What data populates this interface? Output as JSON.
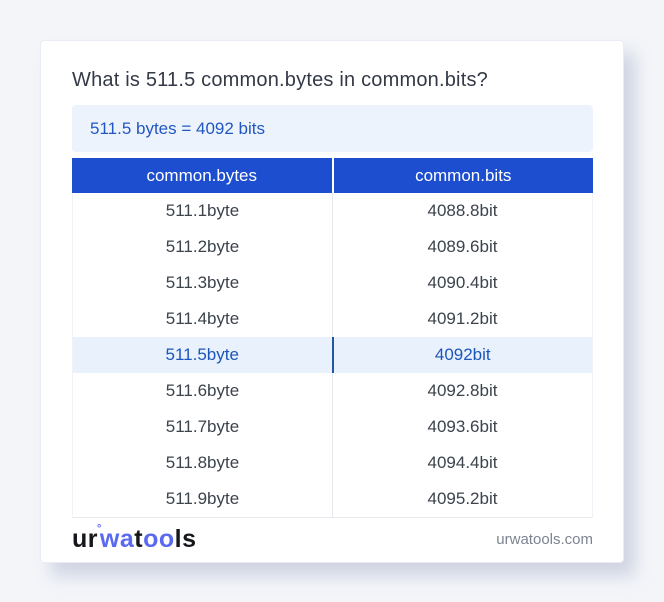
{
  "page": {
    "title": "What is 511.5 common.bytes in common.bits?",
    "answer": "511.5 bytes = 4092 bits"
  },
  "table": {
    "columns": [
      "common.bytes",
      "common.bits"
    ],
    "rows": [
      {
        "bytes": "511.1byte",
        "bits": "4088.8bit",
        "highlight": false
      },
      {
        "bytes": "511.2byte",
        "bits": "4089.6bit",
        "highlight": false
      },
      {
        "bytes": "511.3byte",
        "bits": "4090.4bit",
        "highlight": false
      },
      {
        "bytes": "511.4byte",
        "bits": "4091.2bit",
        "highlight": false
      },
      {
        "bytes": "511.5byte",
        "bits": "4092bit",
        "highlight": true
      },
      {
        "bytes": "511.6byte",
        "bits": "4092.8bit",
        "highlight": false
      },
      {
        "bytes": "511.7byte",
        "bits": "4093.6bit",
        "highlight": false
      },
      {
        "bytes": "511.8byte",
        "bits": "4094.4bit",
        "highlight": false
      },
      {
        "bytes": "511.9byte",
        "bits": "4095.2bit",
        "highlight": false
      }
    ]
  },
  "footer": {
    "logo": {
      "part1": "ur",
      "degree_mark": "°",
      "part2": "wa",
      "part3": "t",
      "part4": "oo",
      "part5": "ls"
    },
    "domain": "urwatools.com"
  },
  "colors": {
    "page_background": "#f3f5f9",
    "card_background": "#ffffff",
    "table_header_bg": "#1d4ecf",
    "table_header_text": "#ffffff",
    "answer_box_bg": "#ecf3fc",
    "answer_text": "#2257c2",
    "highlight_row_bg": "#e8f1fc",
    "highlight_row_text": "#1c56ba",
    "body_text": "#3c434c",
    "title_text": "#333a46",
    "logo_accent": "#5a69f0",
    "domain_text": "#7d8491"
  }
}
